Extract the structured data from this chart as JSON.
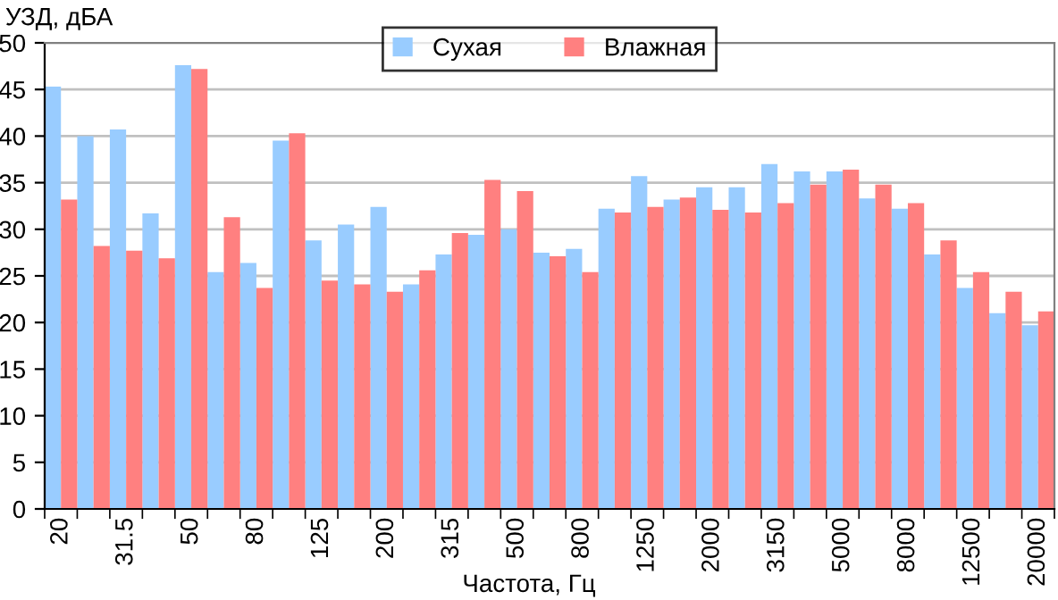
{
  "chart_data": {
    "type": "bar",
    "ylabel": "УЗД, дБА",
    "xlabel": "Частота, Гц",
    "categories": [
      "20",
      null,
      "31.5",
      null,
      "50",
      null,
      "80",
      null,
      "125",
      null,
      "200",
      null,
      "315",
      null,
      "500",
      null,
      "800",
      null,
      "1250",
      null,
      "2000",
      null,
      "3150",
      null,
      "5000",
      null,
      "8000",
      null,
      "12500",
      null,
      "20000"
    ],
    "series": [
      {
        "name": "Сухая",
        "color": "#99ccff",
        "values": [
          45.3,
          40.0,
          40.7,
          31.7,
          47.6,
          25.4,
          26.4,
          39.5,
          28.8,
          30.5,
          32.4,
          24.1,
          27.3,
          29.4,
          30.0,
          27.5,
          27.9,
          32.2,
          35.7,
          33.2,
          34.5,
          34.5,
          37.0,
          36.2,
          36.2,
          33.3,
          32.2,
          27.3,
          23.7,
          21.0,
          19.7
        ]
      },
      {
        "name": "Влажная",
        "color": "#ff8080",
        "values": [
          33.2,
          28.2,
          27.7,
          26.9,
          47.2,
          31.3,
          23.7,
          40.3,
          24.5,
          24.1,
          23.3,
          25.6,
          29.6,
          35.3,
          34.1,
          27.1,
          25.4,
          31.8,
          32.4,
          33.4,
          32.1,
          31.8,
          32.8,
          34.8,
          36.4,
          34.8,
          32.8,
          28.8,
          25.4,
          23.3,
          21.2
        ]
      }
    ],
    "ylim": [
      0,
      50
    ],
    "yticks": [
      0,
      5,
      10,
      15,
      20,
      25,
      30,
      35,
      40,
      45,
      50
    ],
    "grid": "y",
    "legend": "top"
  }
}
